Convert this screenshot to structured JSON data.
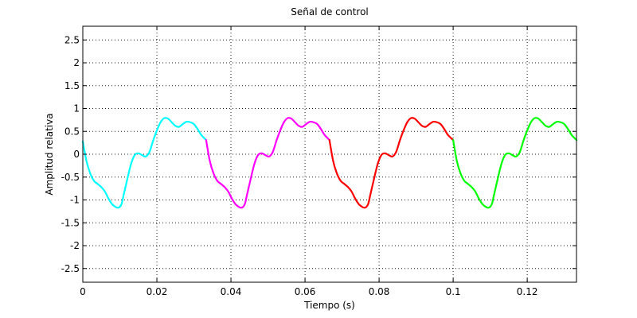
{
  "chart_data": {
    "type": "line",
    "title": "Señal de control",
    "xlabel": "Tiempo (s)",
    "ylabel": "Amplitud relativa",
    "xlim": [
      0,
      0.1333
    ],
    "ylim": [
      -2.8,
      2.8
    ],
    "grid": true,
    "x_ticks": [
      0,
      0.02,
      0.04,
      0.06,
      0.08,
      0.1,
      0.12
    ],
    "x_tick_labels": [
      "0",
      "0.02",
      "0.04",
      "0.06",
      "0.08",
      "0.1",
      "0.12"
    ],
    "y_ticks": [
      -2.5,
      -2,
      -1.5,
      -1,
      -0.5,
      0,
      0.5,
      1,
      1.5,
      2,
      2.5
    ],
    "y_tick_labels": [
      "-2.5",
      "-2",
      "-1.5",
      "-1",
      "-0.5",
      "0",
      "0.5",
      "1",
      "1.5",
      "2",
      "2.5"
    ],
    "series": [
      {
        "color": "#00ffff",
        "x": [
          0,
          0.001,
          0.002,
          0.003,
          0.004,
          0.005,
          0.006,
          0.007,
          0.008,
          0.009,
          0.0095,
          0.01,
          0.0105,
          0.011,
          0.012,
          0.013,
          0.014,
          0.015,
          0.016,
          0.017,
          0.018,
          0.019,
          0.02,
          0.021,
          0.022,
          0.023,
          0.024,
          0.025,
          0.026,
          0.027,
          0.028,
          0.029,
          0.03,
          0.031,
          0.032,
          0.0333
        ],
        "y": [
          0.28,
          -0.15,
          -0.42,
          -0.58,
          -0.65,
          -0.72,
          -0.82,
          -0.98,
          -1.1,
          -1.16,
          -1.17,
          -1.15,
          -1.08,
          -0.9,
          -0.55,
          -0.22,
          -0.02,
          0.02,
          -0.02,
          -0.05,
          0.05,
          0.3,
          0.52,
          0.7,
          0.79,
          0.78,
          0.7,
          0.62,
          0.6,
          0.66,
          0.71,
          0.7,
          0.66,
          0.55,
          0.42,
          0.31
        ]
      },
      {
        "color": "#ff00ff",
        "x": [
          0.0333,
          0.0343,
          0.0353,
          0.0363,
          0.0373,
          0.0383,
          0.0393,
          0.0403,
          0.0413,
          0.0423,
          0.0428,
          0.0433,
          0.0438,
          0.0443,
          0.0453,
          0.0463,
          0.0473,
          0.0483,
          0.0493,
          0.0503,
          0.0513,
          0.0523,
          0.0533,
          0.0543,
          0.0553,
          0.0563,
          0.0573,
          0.0583,
          0.0593,
          0.0603,
          0.0613,
          0.0623,
          0.0633,
          0.0643,
          0.0653,
          0.0666
        ],
        "y": [
          0.31,
          -0.15,
          -0.42,
          -0.58,
          -0.65,
          -0.72,
          -0.82,
          -0.98,
          -1.1,
          -1.16,
          -1.17,
          -1.15,
          -1.08,
          -0.9,
          -0.55,
          -0.22,
          -0.02,
          0.02,
          -0.02,
          -0.05,
          0.05,
          0.3,
          0.52,
          0.7,
          0.79,
          0.78,
          0.7,
          0.62,
          0.6,
          0.66,
          0.71,
          0.7,
          0.66,
          0.55,
          0.42,
          0.31
        ]
      },
      {
        "color": "#ff0000",
        "x": [
          0.0666,
          0.0676,
          0.0686,
          0.0696,
          0.0706,
          0.0716,
          0.0726,
          0.0736,
          0.0746,
          0.0756,
          0.0761,
          0.0766,
          0.0771,
          0.0776,
          0.0786,
          0.0796,
          0.0806,
          0.0816,
          0.0826,
          0.0836,
          0.0846,
          0.0856,
          0.0866,
          0.0876,
          0.0886,
          0.0896,
          0.0906,
          0.0916,
          0.0926,
          0.0936,
          0.0946,
          0.0956,
          0.0966,
          0.0976,
          0.0986,
          0.1
        ],
        "y": [
          0.31,
          -0.15,
          -0.42,
          -0.58,
          -0.65,
          -0.72,
          -0.82,
          -0.98,
          -1.1,
          -1.16,
          -1.17,
          -1.15,
          -1.08,
          -0.9,
          -0.55,
          -0.22,
          -0.02,
          0.02,
          -0.02,
          -0.05,
          0.05,
          0.3,
          0.52,
          0.7,
          0.79,
          0.78,
          0.7,
          0.62,
          0.6,
          0.66,
          0.71,
          0.7,
          0.66,
          0.55,
          0.42,
          0.31
        ]
      },
      {
        "color": "#00ff00",
        "x": [
          0.1,
          0.101,
          0.102,
          0.103,
          0.104,
          0.105,
          0.106,
          0.107,
          0.108,
          0.109,
          0.1095,
          0.11,
          0.1105,
          0.111,
          0.112,
          0.113,
          0.114,
          0.115,
          0.116,
          0.117,
          0.118,
          0.119,
          0.12,
          0.121,
          0.122,
          0.123,
          0.124,
          0.125,
          0.126,
          0.127,
          0.128,
          0.129,
          0.13,
          0.131,
          0.132,
          0.1333
        ],
        "y": [
          0.31,
          -0.15,
          -0.42,
          -0.58,
          -0.65,
          -0.72,
          -0.82,
          -0.98,
          -1.1,
          -1.16,
          -1.17,
          -1.15,
          -1.08,
          -0.9,
          -0.55,
          -0.22,
          -0.02,
          0.02,
          -0.02,
          -0.05,
          0.05,
          0.3,
          0.52,
          0.7,
          0.79,
          0.78,
          0.7,
          0.62,
          0.6,
          0.66,
          0.71,
          0.7,
          0.66,
          0.55,
          0.42,
          0.31
        ]
      }
    ]
  }
}
